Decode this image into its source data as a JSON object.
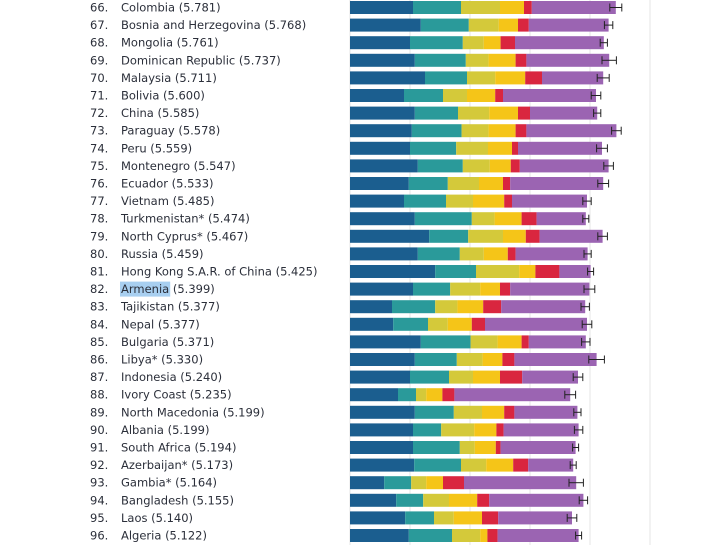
{
  "chart_data": {
    "type": "bar",
    "orientation": "horizontal",
    "stacked": true,
    "title": "",
    "xlabel": "",
    "ylabel": "",
    "highlighted": "Armenia",
    "colors": [
      "#1b5e8f",
      "#2a9a9a",
      "#d4c93a",
      "#f5c518",
      "#d9263f",
      "#9b64b2"
    ],
    "rows": [
      {
        "rank": "66.",
        "label": "Colombia (5.781)",
        "segments": [
          1.05,
          0.8,
          0.65,
          0.4,
          0.13,
          1.4
        ],
        "error": 0.1
      },
      {
        "rank": "67.",
        "label": "Bosnia and Herzegovina (5.768)",
        "segments": [
          1.18,
          0.8,
          0.5,
          0.32,
          0.18,
          1.33
        ],
        "error": 0.07
      },
      {
        "rank": "68.",
        "label": "Mongolia (5.761)",
        "segments": [
          1.0,
          0.88,
          0.35,
          0.28,
          0.24,
          1.48
        ],
        "error": 0.06
      },
      {
        "rank": "69.",
        "label": "Dominican Republic (5.737)",
        "segments": [
          1.08,
          0.85,
          0.38,
          0.45,
          0.18,
          1.38
        ],
        "error": 0.12
      },
      {
        "rank": "70.",
        "label": "Malaysia (5.711)",
        "segments": [
          1.25,
          0.7,
          0.47,
          0.5,
          0.28,
          1.02
        ],
        "error": 0.1
      },
      {
        "rank": "71.",
        "label": "Bolivia (5.600)",
        "segments": [
          0.9,
          0.65,
          0.4,
          0.47,
          0.13,
          1.55
        ],
        "error": 0.08
      },
      {
        "rank": "72.",
        "label": "China (5.585)",
        "segments": [
          1.08,
          0.72,
          0.52,
          0.48,
          0.2,
          1.12
        ],
        "error": 0.06
      },
      {
        "rank": "73.",
        "label": "Paraguay (5.578)",
        "segments": [
          1.03,
          0.83,
          0.45,
          0.45,
          0.18,
          1.5
        ],
        "error": 0.08
      },
      {
        "rank": "74.",
        "label": "Peru (5.559)",
        "segments": [
          1.0,
          0.77,
          0.53,
          0.4,
          0.1,
          1.4
        ],
        "error": 0.09
      },
      {
        "rank": "75.",
        "label": "Montenegro (5.547)",
        "segments": [
          1.13,
          0.75,
          0.45,
          0.35,
          0.15,
          1.48
        ],
        "error": 0.08
      },
      {
        "rank": "76.",
        "label": "Ecuador (5.533)",
        "segments": [
          0.98,
          0.65,
          0.52,
          0.4,
          0.12,
          1.55
        ],
        "error": 0.09
      },
      {
        "rank": "77.",
        "label": "Vietnam (5.485)",
        "segments": [
          0.9,
          0.7,
          0.45,
          0.52,
          0.13,
          1.25
        ],
        "error": 0.07
      },
      {
        "rank": "78.",
        "label": "Turkmenistan* (5.474)",
        "segments": [
          1.08,
          0.95,
          0.38,
          0.45,
          0.25,
          0.82
        ],
        "error": 0.05
      },
      {
        "rank": "79.",
        "label": "North Cyprus* (5.467)",
        "segments": [
          1.32,
          0.65,
          0.58,
          0.38,
          0.23,
          1.05
        ],
        "error": 0.08
      },
      {
        "rank": "80.",
        "label": "Russia (5.459)",
        "segments": [
          1.13,
          0.7,
          0.4,
          0.4,
          0.13,
          1.2
        ],
        "error": 0.06
      },
      {
        "rank": "81.",
        "label": "Hong Kong S.A.R. of China (5.425)",
        "segments": [
          1.42,
          0.68,
          0.72,
          0.27,
          0.4,
          0.52
        ],
        "error": 0.05
      },
      {
        "rank": "82.",
        "label": "Armenia (5.399)",
        "segments": [
          1.05,
          0.62,
          0.5,
          0.33,
          0.17,
          1.32
        ],
        "error": 0.09
      },
      {
        "rank": "83.",
        "label": "Tajikistan (5.377)",
        "segments": [
          0.7,
          0.72,
          0.37,
          0.43,
          0.3,
          1.4
        ],
        "error": 0.07
      },
      {
        "rank": "84.",
        "label": "Nepal (5.377)",
        "segments": [
          0.72,
          0.58,
          0.33,
          0.4,
          0.22,
          1.7
        ],
        "error": 0.08
      },
      {
        "rank": "85.",
        "label": "Bulgaria (5.371)",
        "segments": [
          1.18,
          0.83,
          0.45,
          0.4,
          0.12,
          0.95
        ],
        "error": 0.07
      },
      {
        "rank": "86.",
        "label": "Libya* (5.330)",
        "segments": [
          1.08,
          0.7,
          0.43,
          0.33,
          0.2,
          1.37
        ],
        "error": 0.13
      },
      {
        "rank": "87.",
        "label": "Indonesia (5.240)",
        "segments": [
          1.0,
          0.65,
          0.4,
          0.45,
          0.37,
          0.93
        ],
        "error": 0.08
      },
      {
        "rank": "88.",
        "label": "Ivory Coast (5.235)",
        "segments": [
          0.8,
          0.3,
          0.17,
          0.27,
          0.2,
          1.93
        ],
        "error": 0.09
      },
      {
        "rank": "89.",
        "label": "North Macedonia (5.199)",
        "segments": [
          1.08,
          0.65,
          0.47,
          0.37,
          0.17,
          1.05
        ],
        "error": 0.06
      },
      {
        "rank": "90.",
        "label": "Albania (5.199)",
        "segments": [
          1.05,
          0.47,
          0.55,
          0.37,
          0.12,
          1.25
        ],
        "error": 0.07
      },
      {
        "rank": "91.",
        "label": "South Africa (5.194)",
        "segments": [
          1.05,
          0.78,
          0.25,
          0.35,
          0.08,
          1.25
        ],
        "error": 0.05
      },
      {
        "rank": "92.",
        "label": "Azerbaijan* (5.173)",
        "segments": [
          1.07,
          0.78,
          0.42,
          0.45,
          0.25,
          0.75
        ],
        "error": 0.05
      },
      {
        "rank": "93.",
        "label": "Gambia* (5.164)",
        "segments": [
          0.57,
          0.45,
          0.25,
          0.28,
          0.35,
          1.87
        ],
        "error": 0.12
      },
      {
        "rank": "94.",
        "label": "Bangladesh (5.155)",
        "segments": [
          0.77,
          0.45,
          0.43,
          0.47,
          0.2,
          1.57
        ],
        "error": 0.07
      },
      {
        "rank": "95.",
        "label": "Laos (5.140)",
        "segments": [
          0.92,
          0.48,
          0.33,
          0.47,
          0.27,
          1.23
        ],
        "error": 0.08
      },
      {
        "rank": "96.",
        "label": "Algeria (5.122)",
        "segments": [
          0.98,
          0.72,
          0.47,
          0.12,
          0.17,
          1.35
        ],
        "error": 0.05
      }
    ]
  }
}
